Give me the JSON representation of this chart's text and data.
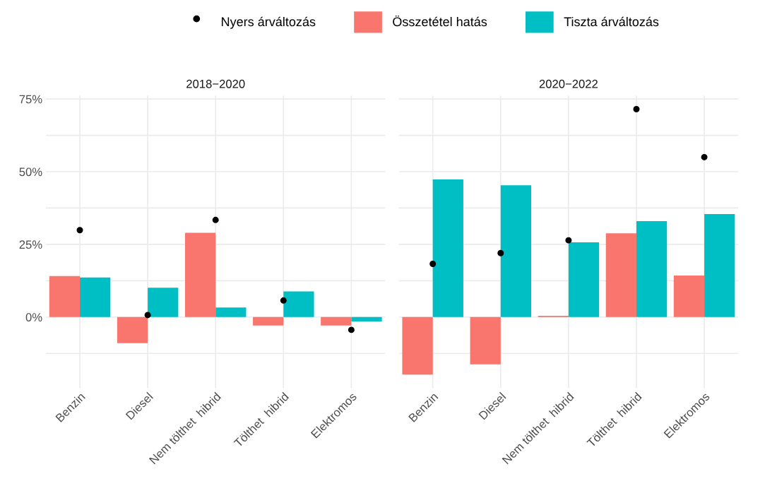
{
  "chart_data": [
    {
      "type": "bar",
      "title": "2018−2020",
      "categories": [
        "Benzin",
        "Diesel",
        "Nem tölthet  hibrid",
        "Tölthet  hibrid",
        "Elektromos"
      ],
      "series": [
        {
          "name": "Nyers árváltozás",
          "type": "scatter",
          "color": "#000000",
          "values": [
            29.9,
            0.7,
            33.4,
            5.7,
            -4.4
          ]
        },
        {
          "name": "Összetétel hatás",
          "color": "#f8766d",
          "values": [
            14.1,
            -9.0,
            29.0,
            -2.9,
            -2.9
          ]
        },
        {
          "name": "Tiszta árváltozás",
          "color": "#00bfc4",
          "values": [
            13.6,
            10.1,
            3.3,
            8.8,
            -1.5
          ]
        }
      ],
      "ylim": [
        -24.4,
        76.1
      ],
      "yticks": [
        {
          "value": -12.5,
          "label": null
        },
        {
          "value": 0,
          "label": "0%"
        },
        {
          "value": 12.5,
          "label": null
        },
        {
          "value": 25,
          "label": "25%"
        },
        {
          "value": 37.5,
          "label": null
        },
        {
          "value": 50,
          "label": "50%"
        },
        {
          "value": 62.5,
          "label": null
        },
        {
          "value": 75,
          "label": "75%"
        }
      ],
      "grid": true,
      "legend": "top",
      "marker": "circle"
    },
    {
      "type": "bar",
      "title": "2020−2022",
      "categories": [
        "Benzin",
        "Diesel",
        "Nem tölthet  hibrid",
        "Tölthet  hibrid",
        "Elektromos"
      ],
      "series": [
        {
          "type": "scatter",
          "color": "#000000",
          "values": [
            18.3,
            22.0,
            26.4,
            71.5,
            55.0
          ]
        },
        {
          "color": "#f8766d",
          "values": [
            -19.8,
            -16.3,
            0.4,
            28.8,
            14.3
          ]
        },
        {
          "color": "#00bfc4",
          "values": [
            47.3,
            45.3,
            25.7,
            33.0,
            35.4
          ]
        }
      ],
      "ylim": [
        -24.4,
        76.1
      ],
      "yticks": [
        {
          "value": -12.5,
          "label": null
        },
        {
          "value": 0,
          "label": null
        },
        {
          "value": 12.5,
          "label": null
        },
        {
          "value": 25,
          "label": null
        },
        {
          "value": 37.5,
          "label": null
        },
        {
          "value": 50,
          "label": null
        },
        {
          "value": 62.5,
          "label": null
        },
        {
          "value": 75,
          "label": null
        }
      ],
      "tick_labels": "x",
      "grid": true,
      "marker": "circle"
    }
  ]
}
